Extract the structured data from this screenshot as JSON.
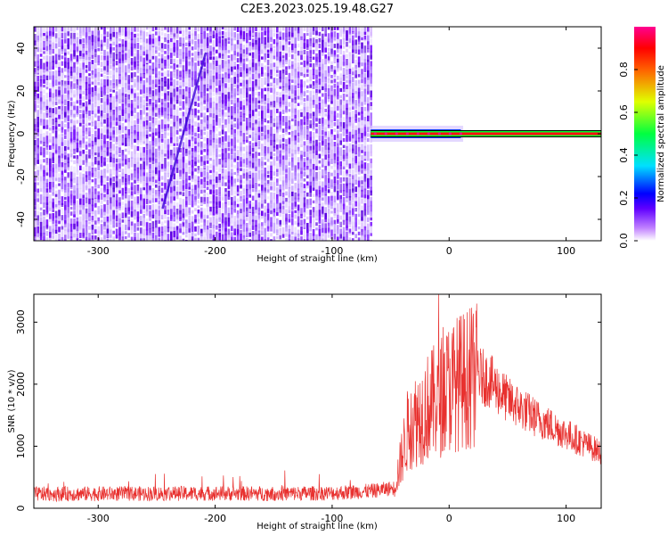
{
  "title": "C2E3.2023.025.19.48.G27",
  "chart_data": [
    {
      "type": "heatmap",
      "xlabel": "Height of straight line (km)",
      "ylabel": "Frequency (Hz)",
      "xlim": [
        -355,
        130
      ],
      "ylim": [
        -50,
        50
      ],
      "xticks": [
        -300,
        -200,
        -100,
        0,
        100
      ],
      "yticks": [
        -40,
        -20,
        0,
        20,
        40
      ],
      "noise_region_x": [
        -355,
        -67
      ],
      "signal_line": {
        "x": [
          -67,
          130
        ],
        "frequency": 0
      },
      "colorbar": {
        "label": "Normalized spectral amplitude",
        "range": [
          0,
          1
        ],
        "ticks": [
          0.0,
          0.2,
          0.4,
          0.6,
          0.8
        ],
        "colors": [
          "#ffffff",
          "#8a00ff",
          "#0000ff",
          "#00e0ff",
          "#00ff00",
          "#ffff00",
          "#ff0000",
          "#ff00a0"
        ]
      },
      "grid": false
    },
    {
      "type": "line",
      "xlabel": "Height of straight line (km)",
      "ylabel": "SNR (10 * v/v)",
      "xlim": [
        -355,
        130
      ],
      "ylim": [
        0,
        3450
      ],
      "xticks": [
        -300,
        -200,
        -100,
        0,
        100
      ],
      "yticks": [
        0,
        1000,
        2000,
        3000
      ],
      "color": "#e8312f",
      "envelope": {
        "x": [
          -355,
          -200,
          -150,
          -100,
          -65,
          -47,
          -42,
          -35,
          -20,
          -10,
          0,
          10,
          25,
          35,
          50,
          75,
          100,
          130
        ],
        "y": [
          230,
          240,
          235,
          245,
          280,
          330,
          700,
          1300,
          1600,
          1750,
          1950,
          2050,
          2150,
          2050,
          1750,
          1450,
          1200,
          900
        ]
      },
      "peak": {
        "x": -9,
        "y": 3450
      },
      "grid": false
    }
  ]
}
